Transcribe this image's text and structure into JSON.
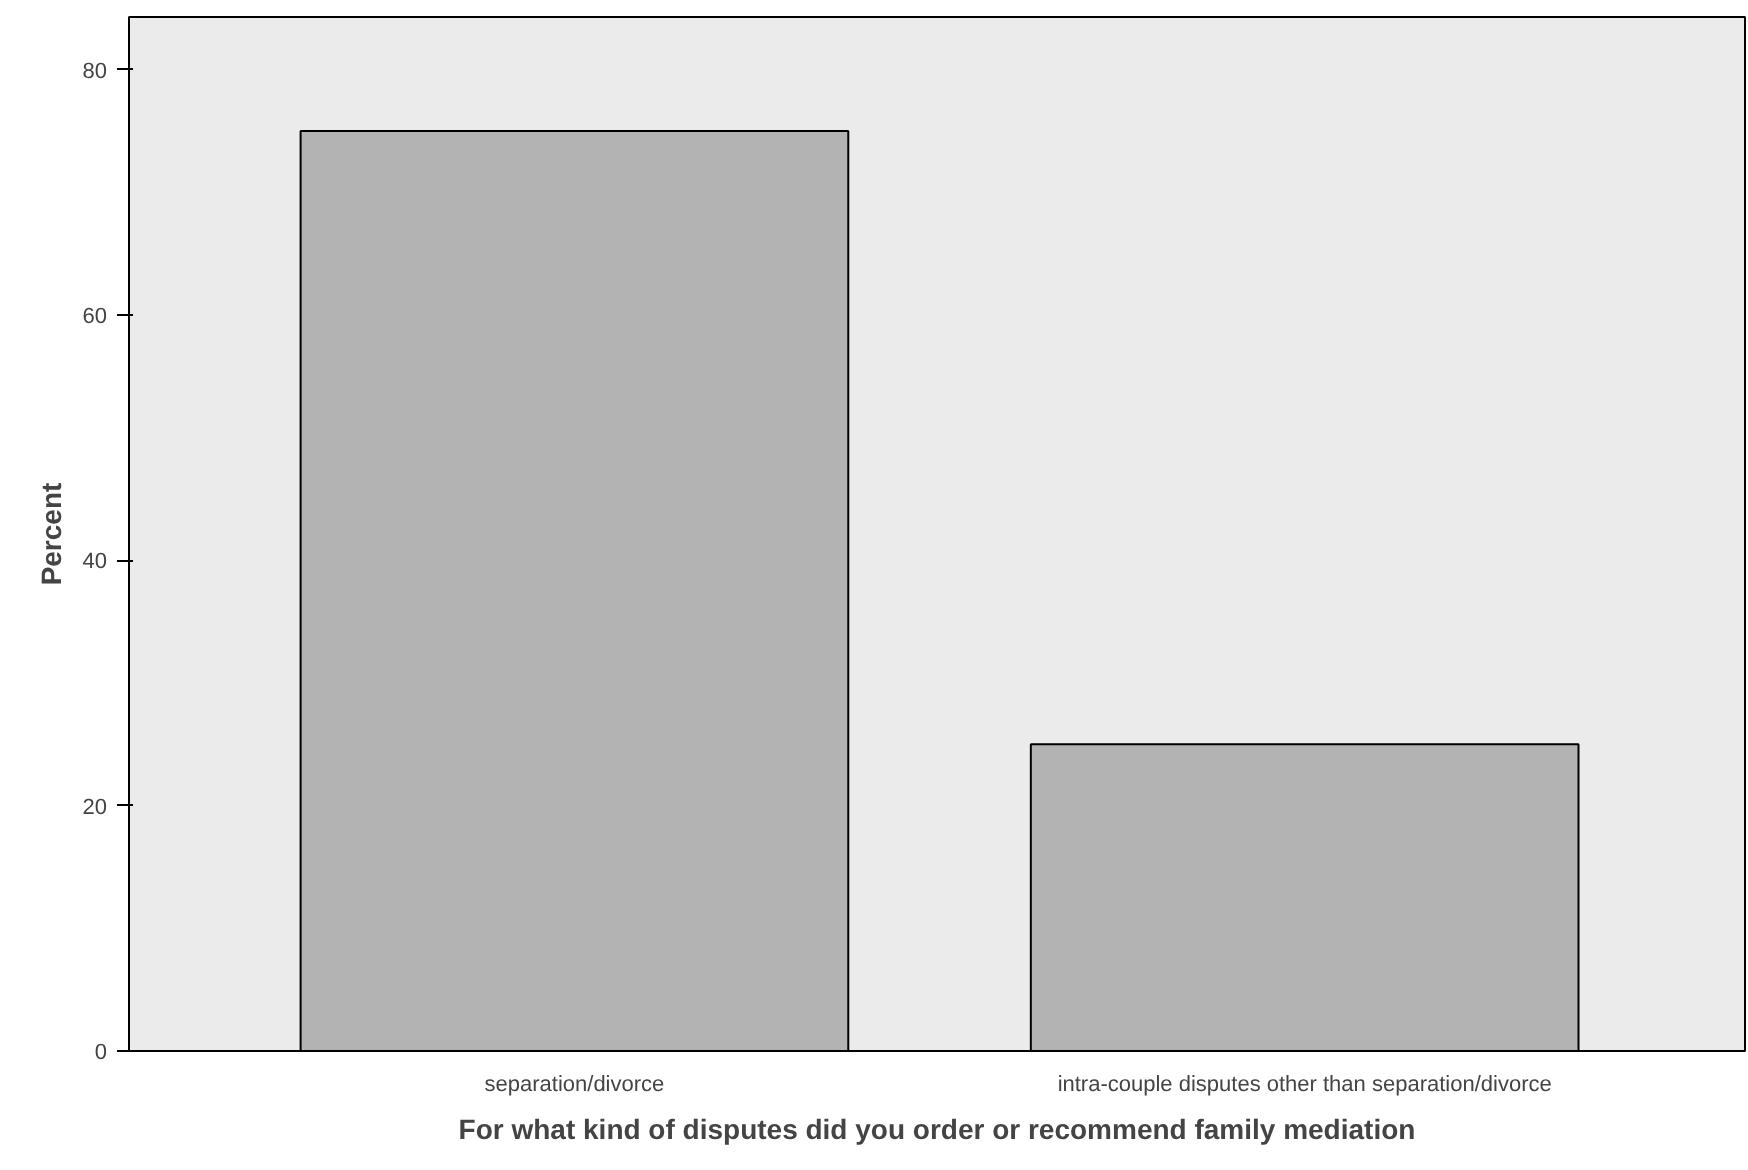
{
  "chart_data": {
    "type": "bar",
    "xlabel": "For what kind of disputes did you order or recommend family mediation",
    "ylabel": "Percent",
    "categories": [
      "separation/divorce",
      "intra-couple disputes other than separation/divorce"
    ],
    "values": [
      75,
      25
    ],
    "color": "#b3b3b3",
    "ylim": [
      0,
      84.3
    ],
    "yticks": [
      0,
      20,
      40,
      60,
      80
    ],
    "grid": false,
    "legend": false
  }
}
